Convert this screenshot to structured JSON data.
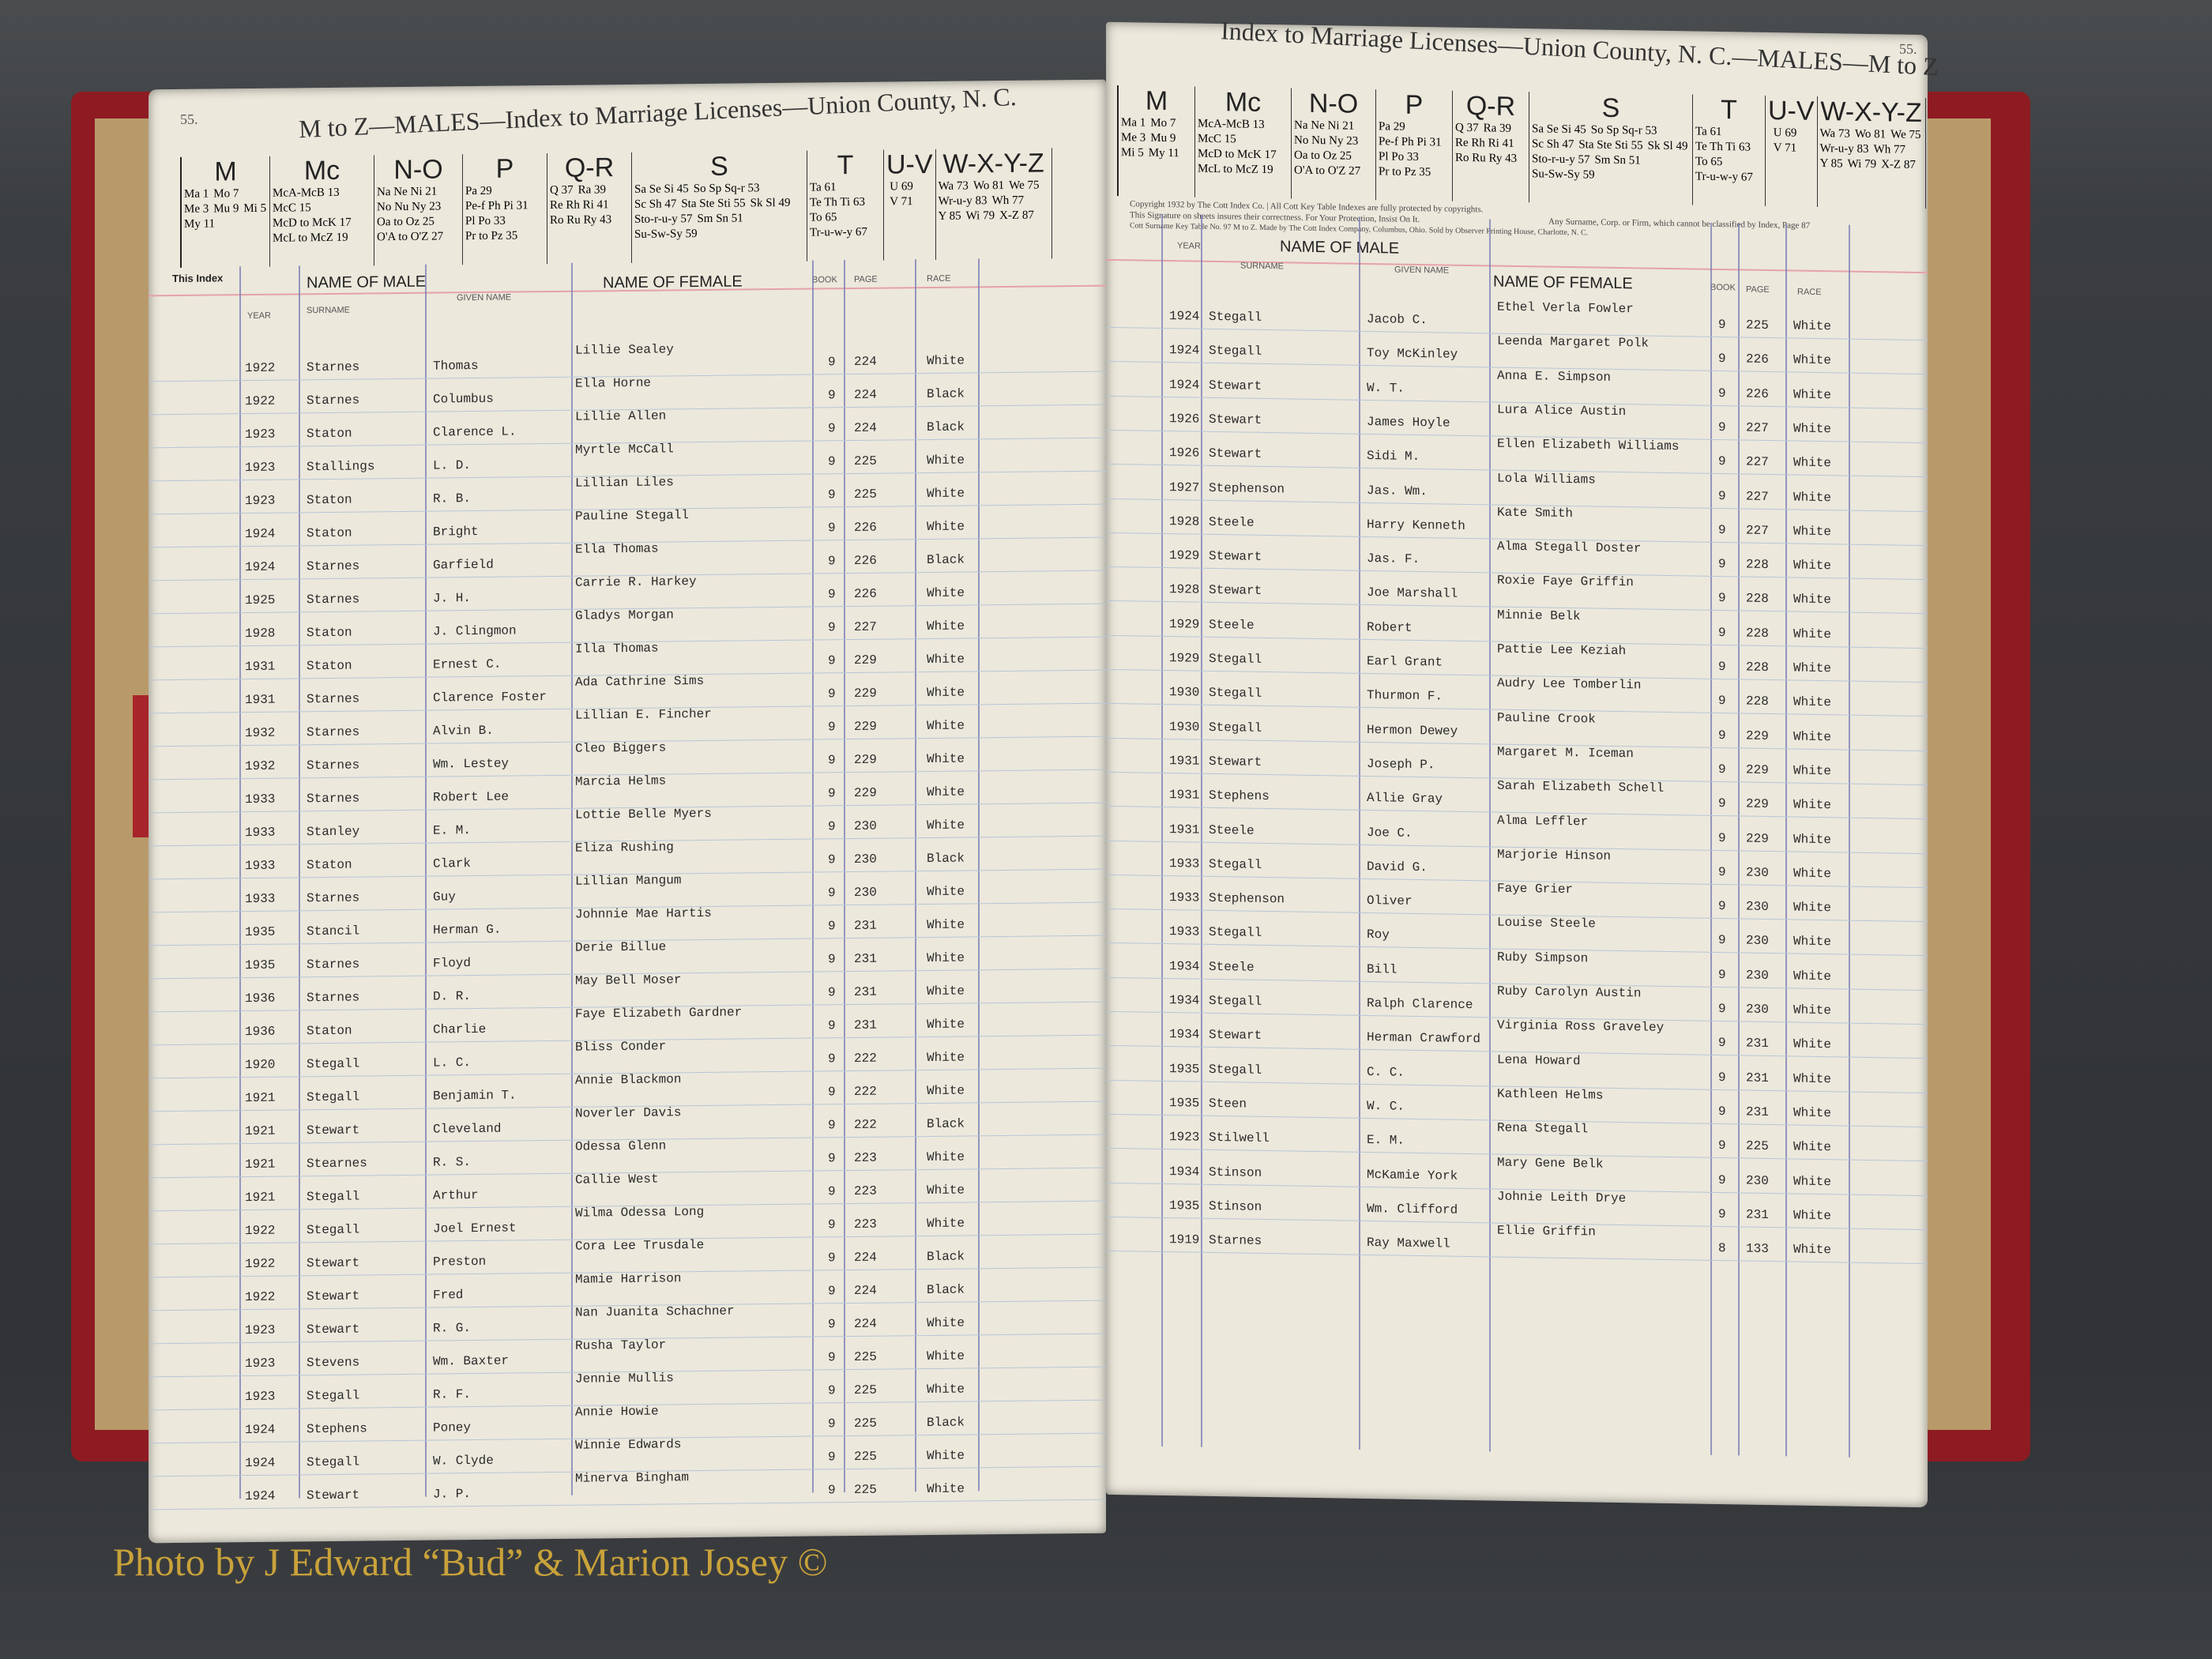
{
  "left_page": {
    "page_number": "55.",
    "title": "M to Z—MALES—Index to Marriage Licenses—Union County, N. C.",
    "this_index": "This Index",
    "headers": {
      "name_of_male": "NAME OF MALE",
      "year": "YEAR",
      "surname": "SURNAME",
      "given_name": "GIVEN NAME",
      "name_of_female": "NAME OF FEMALE",
      "book": "BOOK",
      "page": "PAGE",
      "race": "RACE"
    },
    "rows": [
      [
        "1922",
        "Starnes",
        "Thomas",
        "Lillie Sealey",
        "9",
        "224",
        "White"
      ],
      [
        "1922",
        "Starnes",
        "Columbus",
        "Ella Horne",
        "9",
        "224",
        "Black"
      ],
      [
        "1923",
        "Staton",
        "Clarence L.",
        "Lillie Allen",
        "9",
        "224",
        "Black"
      ],
      [
        "1923",
        "Stallings",
        "L. D.",
        "Myrtle McCall",
        "9",
        "225",
        "White"
      ],
      [
        "1923",
        "Staton",
        "R. B.",
        "Lillian Liles",
        "9",
        "225",
        "White"
      ],
      [
        "1924",
        "Staton",
        "Bright",
        "Pauline Stegall",
        "9",
        "226",
        "White"
      ],
      [
        "1924",
        "Starnes",
        "Garfield",
        "Ella Thomas",
        "9",
        "226",
        "Black"
      ],
      [
        "1925",
        "Starnes",
        "J. H.",
        "Carrie R. Harkey",
        "9",
        "226",
        "White"
      ],
      [
        "1928",
        "Staton",
        "J. Clingmon",
        "Gladys Morgan",
        "9",
        "227",
        "White"
      ],
      [
        "1931",
        "Staton",
        "Ernest C.",
        "Illa Thomas",
        "9",
        "229",
        "White"
      ],
      [
        "1931",
        "Starnes",
        "Clarence Foster",
        "Ada Cathrine Sims",
        "9",
        "229",
        "White"
      ],
      [
        "1932",
        "Starnes",
        "Alvin B.",
        "Lillian E. Fincher",
        "9",
        "229",
        "White"
      ],
      [
        "1932",
        "Starnes",
        "Wm. Lestey",
        "Cleo Biggers",
        "9",
        "229",
        "White"
      ],
      [
        "1933",
        "Starnes",
        "Robert Lee",
        "Marcia Helms",
        "9",
        "229",
        "White"
      ],
      [
        "1933",
        "Stanley",
        "E. M.",
        "Lottie Belle Myers",
        "9",
        "230",
        "White"
      ],
      [
        "1933",
        "Staton",
        "Clark",
        "Eliza Rushing",
        "9",
        "230",
        "Black"
      ],
      [
        "1933",
        "Starnes",
        "Guy",
        "Lillian Mangum",
        "9",
        "230",
        "White"
      ],
      [
        "1935",
        "Stancil",
        "Herman G.",
        "Johnnie Mae Hartis",
        "9",
        "231",
        "White"
      ],
      [
        "1935",
        "Starnes",
        "Floyd",
        "Derie Billue",
        "9",
        "231",
        "White"
      ],
      [
        "1936",
        "Starnes",
        "D. R.",
        "May Bell Moser",
        "9",
        "231",
        "White"
      ],
      [
        "1936",
        "Staton",
        "Charlie",
        "Faye Elizabeth Gardner",
        "9",
        "231",
        "White"
      ],
      [
        "1920",
        "Stegall",
        "L. C.",
        "Bliss Conder",
        "9",
        "222",
        "White"
      ],
      [
        "1921",
        "Stegall",
        "Benjamin T.",
        "Annie Blackmon",
        "9",
        "222",
        "White"
      ],
      [
        "1921",
        "Stewart",
        "Cleveland",
        "Noverler Davis",
        "9",
        "222",
        "Black"
      ],
      [
        "1921",
        "Stearnes",
        "R. S.",
        "Odessa Glenn",
        "9",
        "223",
        "White"
      ],
      [
        "1921",
        "Stegall",
        "Arthur",
        "Callie West",
        "9",
        "223",
        "White"
      ],
      [
        "1922",
        "Stegall",
        "Joel Ernest",
        "Wilma Odessa Long",
        "9",
        "223",
        "White"
      ],
      [
        "1922",
        "Stewart",
        "Preston",
        "Cora Lee Trusdale",
        "9",
        "224",
        "Black"
      ],
      [
        "1922",
        "Stewart",
        "Fred",
        "Mamie Harrison",
        "9",
        "224",
        "Black"
      ],
      [
        "1923",
        "Stewart",
        "R. G.",
        "Nan Juanita Schachner",
        "9",
        "224",
        "White"
      ],
      [
        "1923",
        "Stevens",
        "Wm. Baxter",
        "Rusha Taylor",
        "9",
        "225",
        "White"
      ],
      [
        "1923",
        "Stegall",
        "R. F.",
        "Jennie Mullis",
        "9",
        "225",
        "White"
      ],
      [
        "1924",
        "Stephens",
        "Poney",
        "Annie Howie",
        "9",
        "225",
        "Black"
      ],
      [
        "1924",
        "Stegall",
        "W. Clyde",
        "Winnie Edwards",
        "9",
        "225",
        "White"
      ],
      [
        "1924",
        "Stewart",
        "J. P.",
        "Minerva Bingham",
        "9",
        "225",
        "White"
      ]
    ]
  },
  "right_page": {
    "page_number": "55.",
    "title": "Index to Marriage Licenses—Union County, N. C.—MALES—M to Z",
    "copyright": "Copyright 1932 by The Cott Index Co. | All Cott Key Table Indexes are fully protected by copyrights.",
    "protection": "This Signature on sheets insures their correctness. For Your Protection, Insist On It.",
    "any_surname": "Any Surname, Corp. or Firm, which cannot be classified by Index, Page 87",
    "maker": "Cott Surname Key Table No. 97 M to Z. Made by The Cott Index Company, Columbus, Ohio. Sold by Observer Printing House, Charlotte, N. C.",
    "headers": {
      "name_of_male": "NAME OF MALE",
      "year": "YEAR",
      "surname": "SURNAME",
      "given_name": "GIVEN NAME",
      "name_of_female": "NAME OF FEMALE",
      "book": "BOOK",
      "page": "PAGE",
      "race": "RACE"
    },
    "rows": [
      [
        "1924",
        "Stegall",
        "Jacob C.",
        "Ethel Verla Fowler",
        "9",
        "225",
        "White"
      ],
      [
        "1924",
        "Stegall",
        "Toy McKinley",
        "Leenda Margaret Polk",
        "9",
        "226",
        "White"
      ],
      [
        "1924",
        "Stewart",
        "W. T.",
        "Anna E. Simpson",
        "9",
        "226",
        "White"
      ],
      [
        "1926",
        "Stewart",
        "James Hoyle",
        "Lura Alice Austin",
        "9",
        "227",
        "White"
      ],
      [
        "1926",
        "Stewart",
        "Sidi M.",
        "Ellen Elizabeth Williams",
        "9",
        "227",
        "White"
      ],
      [
        "1927",
        "Stephenson",
        "Jas. Wm.",
        "Lola Williams",
        "9",
        "227",
        "White"
      ],
      [
        "1928",
        "Steele",
        "Harry Kenneth",
        "Kate Smith",
        "9",
        "227",
        "White"
      ],
      [
        "1929",
        "Stewart",
        "Jas. F.",
        "Alma Stegall Doster",
        "9",
        "228",
        "White"
      ],
      [
        "1928",
        "Stewart",
        "Joe Marshall",
        "Roxie Faye Griffin",
        "9",
        "228",
        "White"
      ],
      [
        "1929",
        "Steele",
        "Robert",
        "Minnie Belk",
        "9",
        "228",
        "White"
      ],
      [
        "1929",
        "Stegall",
        "Earl Grant",
        "Pattie Lee Keziah",
        "9",
        "228",
        "White"
      ],
      [
        "1930",
        "Stegall",
        "Thurmon F.",
        "Audry Lee Tomberlin",
        "9",
        "228",
        "White"
      ],
      [
        "1930",
        "Stegall",
        "Hermon Dewey",
        "Pauline Crook",
        "9",
        "229",
        "White"
      ],
      [
        "1931",
        "Stewart",
        "Joseph P.",
        "Margaret M. Iceman",
        "9",
        "229",
        "White"
      ],
      [
        "1931",
        "Stephens",
        "Allie Gray",
        "Sarah Elizabeth Schell",
        "9",
        "229",
        "White"
      ],
      [
        "1931",
        "Steele",
        "Joe C.",
        "Alma Leffler",
        "9",
        "229",
        "White"
      ],
      [
        "1933",
        "Stegall",
        "David G.",
        "Marjorie Hinson",
        "9",
        "230",
        "White"
      ],
      [
        "1933",
        "Stephenson",
        "Oliver",
        "Faye Grier",
        "9",
        "230",
        "White"
      ],
      [
        "1933",
        "Stegall",
        "Roy",
        "Louise Steele",
        "9",
        "230",
        "White"
      ],
      [
        "1934",
        "Steele",
        "Bill",
        "Ruby Simpson",
        "9",
        "230",
        "White"
      ],
      [
        "1934",
        "Stegall",
        "Ralph Clarence",
        "Ruby Carolyn Austin",
        "9",
        "230",
        "White"
      ],
      [
        "1934",
        "Stewart",
        "Herman Crawford",
        "Virginia Ross Graveley",
        "9",
        "231",
        "White"
      ],
      [
        "1935",
        "Stegall",
        "C. C.",
        "Lena Howard",
        "9",
        "231",
        "White"
      ],
      [
        "1935",
        "Steen",
        "W. C.",
        "Kathleen Helms",
        "9",
        "231",
        "White"
      ],
      [
        "1923",
        "Stilwell",
        "E. M.",
        "Rena Stegall",
        "9",
        "225",
        "White"
      ],
      [
        "1934",
        "Stinson",
        "McKamie York",
        "Mary Gene Belk",
        "9",
        "230",
        "White"
      ],
      [
        "1935",
        "Stinson",
        "Wm. Clifford",
        "Johnie Leith Drye",
        "9",
        "231",
        "White"
      ],
      [
        "1919",
        "Starnes",
        "Ray Maxwell",
        "Ellie Griffin",
        "8",
        "133",
        "White"
      ]
    ]
  },
  "key_table": [
    {
      "letter": "M",
      "entries": [
        "Ma 1",
        "Mo 7",
        "Me 3",
        "Mu 9",
        "Mi 5",
        "My 11"
      ]
    },
    {
      "letter": "Mc",
      "entries": [
        "McA-McB 13",
        "McC 15",
        "McD to McK 17",
        "McL to McZ 19"
      ]
    },
    {
      "letter": "N-O",
      "entries": [
        "Na Ne Ni 21",
        "No Nu Ny 23",
        "Oa to Oz 25",
        "O'A to O'Z 27"
      ]
    },
    {
      "letter": "P",
      "entries": [
        "Pa 29",
        "Pe-f Ph Pi 31",
        "Pl Po 33",
        "Pr to Pz 35"
      ]
    },
    {
      "letter": "Q-R",
      "entries": [
        "Q 37",
        "Ra 39",
        "Re Rh Ri 41",
        "Ro Ru Ry 43"
      ]
    },
    {
      "letter": "S",
      "entries": [
        "Sa Se Si 45",
        "So Sp Sq-r 53",
        "Sc Sh 47",
        "Sta Ste Sti 55",
        "Sk Sl 49",
        "Sto-r-u-y 57",
        "Sm Sn 51",
        "Su-Sw-Sy 59"
      ]
    },
    {
      "letter": "T",
      "entries": [
        "Ta 61",
        "Te Th Ti 63",
        "To 65",
        "Tr-u-w-y 67"
      ]
    },
    {
      "letter": "U-V",
      "entries": [
        "U 69",
        "V 71"
      ]
    },
    {
      "letter": "W-X-Y-Z",
      "entries": [
        "Wa 73",
        "Wo 81",
        "We 75",
        "Wr-u-y 83",
        "Wh 77",
        "Y 85",
        "Wi 79",
        "X-Z 87"
      ]
    }
  ],
  "caption": "Photo by J Edward “Bud” & Marion Josey ©",
  "colors": {
    "cover": "#8e1b22",
    "page": "#ece8dc",
    "rule_red": "#e6a2a8",
    "rule_blue": "#7d7fb5",
    "caption": "#c9a23a"
  }
}
